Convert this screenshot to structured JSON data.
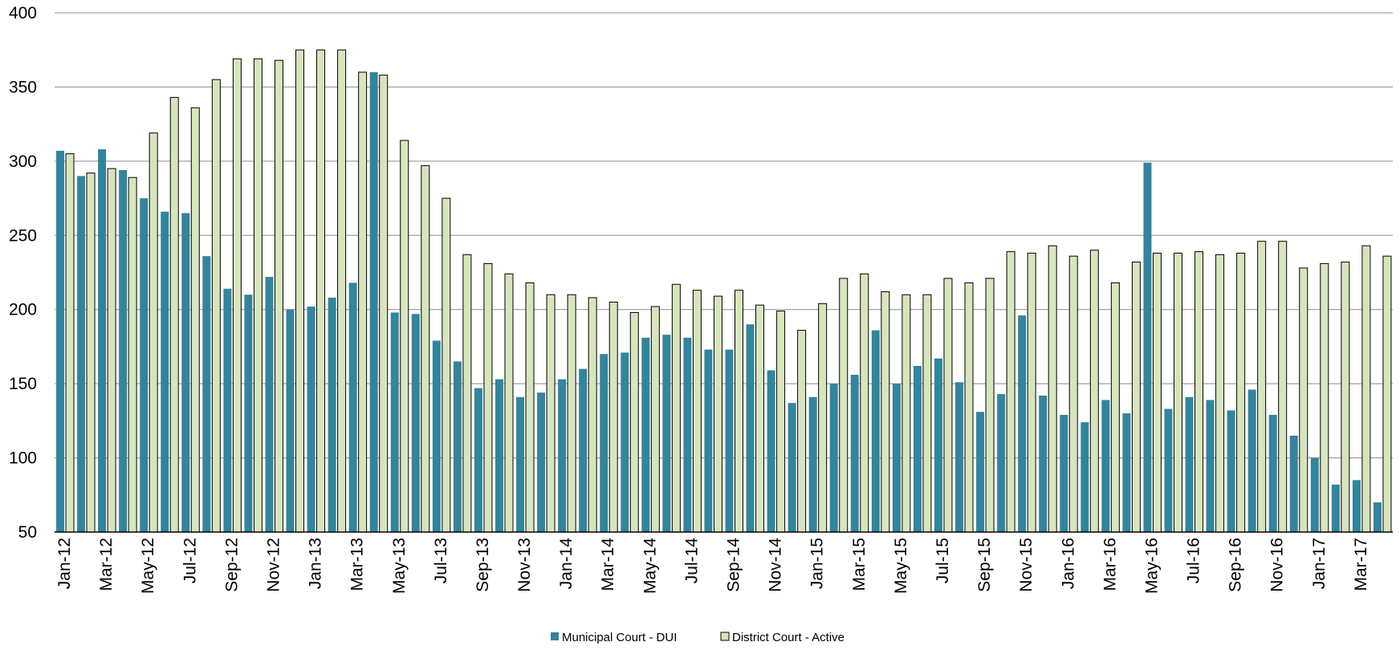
{
  "chart_data": {
    "type": "bar",
    "title": "",
    "xlabel": "",
    "ylabel": "",
    "ylim": [
      50,
      400
    ],
    "yticks": [
      50,
      100,
      150,
      200,
      250,
      300,
      350,
      400
    ],
    "grid": true,
    "legend_position": "bottom",
    "categories": [
      "Jan-12",
      "Feb-12",
      "Mar-12",
      "Apr-12",
      "May-12",
      "Jun-12",
      "Jul-12",
      "Aug-12",
      "Sep-12",
      "Oct-12",
      "Nov-12",
      "Dec-12",
      "Jan-13",
      "Feb-13",
      "Mar-13",
      "Apr-13",
      "May-13",
      "Jun-13",
      "Jul-13",
      "Aug-13",
      "Sep-13",
      "Oct-13",
      "Nov-13",
      "Dec-13",
      "Jan-14",
      "Feb-14",
      "Mar-14",
      "Apr-14",
      "May-14",
      "Jun-14",
      "Jul-14",
      "Aug-14",
      "Sep-14",
      "Oct-14",
      "Nov-14",
      "Dec-14",
      "Jan-15",
      "Feb-15",
      "Mar-15",
      "Apr-15",
      "May-15",
      "Jun-15",
      "Jul-15",
      "Aug-15",
      "Sep-15",
      "Oct-15",
      "Nov-15",
      "Dec-15",
      "Jan-16",
      "Feb-16",
      "Mar-16",
      "Apr-16",
      "May-16",
      "Jun-16",
      "Jul-16",
      "Aug-16",
      "Sep-16",
      "Oct-16",
      "Nov-16",
      "Dec-16",
      "Jan-17",
      "Feb-17",
      "Mar-17",
      "Apr-17"
    ],
    "shown_tick_labels": [
      "Jan-12",
      "Mar-12",
      "May-12",
      "Jul-12",
      "Sep-12",
      "Nov-12",
      "Jan-13",
      "Mar-13",
      "May-13",
      "Jul-13",
      "Sep-13",
      "Nov-13",
      "Jan-14",
      "Mar-14",
      "May-14",
      "Jul-14",
      "Sep-14",
      "Nov-14",
      "Jan-15",
      "Mar-15",
      "May-15",
      "Jul-15",
      "Sep-15",
      "Nov-15",
      "Jan-16",
      "Mar-16",
      "May-16",
      "Jul-16",
      "Sep-16",
      "Nov-16",
      "Jan-17",
      "Mar-17"
    ],
    "series": [
      {
        "name": "Municipal Court - DUI",
        "color": "#31859c",
        "values": [
          307,
          290,
          308,
          294,
          275,
          266,
          265,
          236,
          214,
          210,
          222,
          200,
          202,
          208,
          218,
          360,
          198,
          197,
          179,
          165,
          147,
          153,
          141,
          144,
          153,
          160,
          170,
          171,
          181,
          183,
          181,
          173,
          173,
          190,
          159,
          137,
          141,
          150,
          156,
          186,
          150,
          162,
          167,
          151,
          131,
          143,
          196,
          142,
          129,
          124,
          139,
          130,
          299,
          133,
          141,
          139,
          132,
          146,
          129,
          115,
          100,
          82,
          85,
          70
        ]
      },
      {
        "name": "District Court - Active",
        "color": "#d7e4bd",
        "values": [
          305,
          292,
          295,
          289,
          319,
          343,
          336,
          355,
          369,
          369,
          368,
          375,
          375,
          375,
          360,
          358,
          314,
          297,
          275,
          237,
          231,
          224,
          218,
          210,
          210,
          208,
          205,
          198,
          202,
          217,
          213,
          209,
          213,
          203,
          199,
          186,
          204,
          221,
          224,
          212,
          210,
          210,
          221,
          218,
          221,
          239,
          238,
          243,
          236,
          240,
          218,
          232,
          238,
          238,
          239,
          237,
          238,
          246,
          246,
          228,
          231,
          232,
          243,
          236
        ]
      }
    ]
  }
}
